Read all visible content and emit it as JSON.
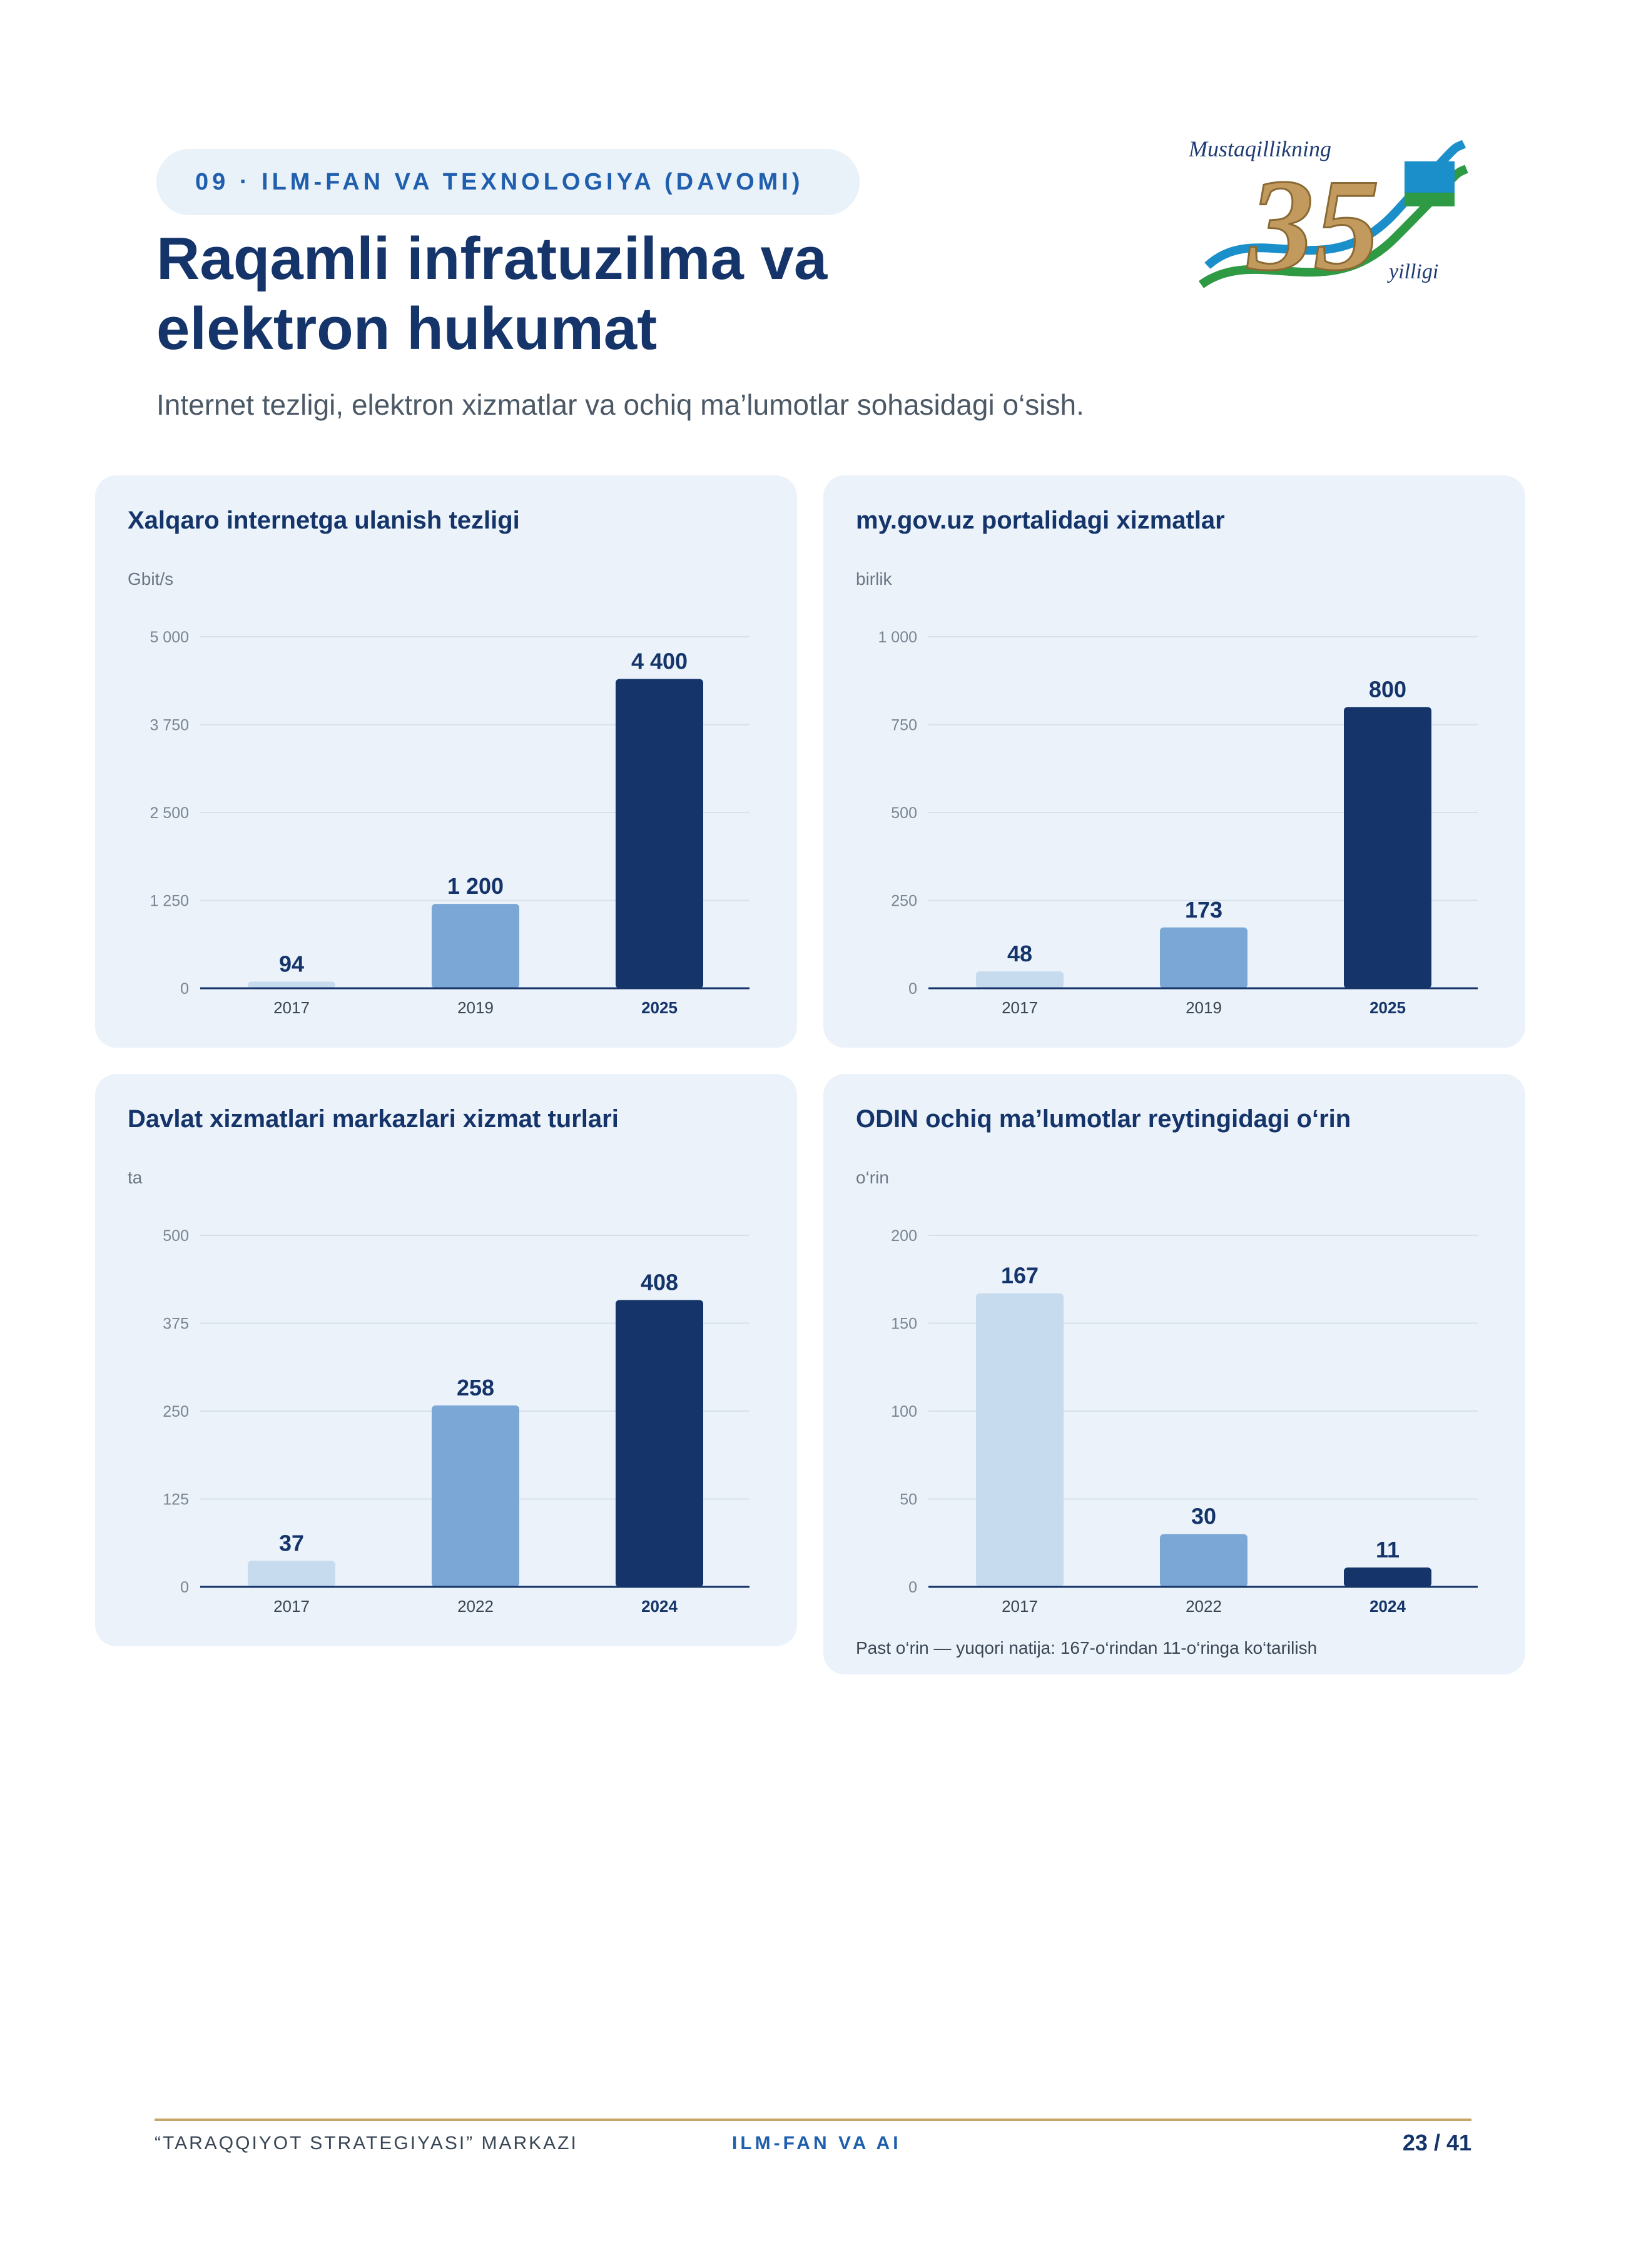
{
  "header": {
    "section_label": "09 · ILM-FAN VA TEXNOLOGIYA (DAVOMI)",
    "title_line1": "Raqamli infratuzilma va",
    "title_line2": "elektron hukumat",
    "subtitle": "Internet tezligi, elektron xizmatlar va ochiq ma’lumotlar sohasidagi o‘sish."
  },
  "logo": {
    "text_top": "Mustaqillikning",
    "number": "35",
    "text_bottom": "yilligi"
  },
  "colors": {
    "light": "#c7dbef",
    "mid": "#7ba7d6",
    "dark": "#14346a",
    "card_bg": "#ebf2f9",
    "gold": "#c6a66a"
  },
  "chart_data": [
    {
      "type": "bar",
      "title": "Xalqaro internetga ulanish tezligi",
      "unit": "Gbit/s",
      "categories": [
        "2017",
        "2019",
        "2025"
      ],
      "values": [
        94,
        1200,
        4400
      ],
      "value_labels": [
        "94",
        "1 200",
        "4 400"
      ],
      "ylim": [
        0,
        5000
      ],
      "yticks": [
        0,
        1250,
        2500,
        3750,
        5000
      ],
      "ytick_labels": [
        "0",
        "1 250",
        "2 500",
        "3 750",
        "5 000"
      ],
      "bold_category": 2
    },
    {
      "type": "bar",
      "title": "my.gov.uz portalidagi xizmatlar",
      "unit": "birlik",
      "categories": [
        "2017",
        "2019",
        "2025"
      ],
      "values": [
        48,
        173,
        800
      ],
      "value_labels": [
        "48",
        "173",
        "800"
      ],
      "ylim": [
        0,
        1000
      ],
      "yticks": [
        0,
        250,
        500,
        750,
        1000
      ],
      "ytick_labels": [
        "0",
        "250",
        "500",
        "750",
        "1 000"
      ],
      "bold_category": 2
    },
    {
      "type": "bar",
      "title": "Davlat xizmatlari markazlari xizmat turlari",
      "unit": "ta",
      "categories": [
        "2017",
        "2022",
        "2024"
      ],
      "values": [
        37,
        258,
        408
      ],
      "value_labels": [
        "37",
        "258",
        "408"
      ],
      "ylim": [
        0,
        500
      ],
      "yticks": [
        0,
        125,
        250,
        375,
        500
      ],
      "ytick_labels": [
        "0",
        "125",
        "250",
        "375",
        "500"
      ],
      "bold_category": 2
    },
    {
      "type": "bar",
      "title": "ODIN ochiq ma’lumotlar reytingidagi o‘rin",
      "unit": "o‘rin",
      "categories": [
        "2017",
        "2022",
        "2024"
      ],
      "values": [
        167,
        30,
        11
      ],
      "value_labels": [
        "167",
        "30",
        "11"
      ],
      "ylim": [
        0,
        200
      ],
      "yticks": [
        0,
        50,
        100,
        150,
        200
      ],
      "ytick_labels": [
        "0",
        "50",
        "100",
        "150",
        "200"
      ],
      "bold_category": 2,
      "note": "Past o‘rin — yuqori natija: 167-o‘rindan 11-o‘ringa ko‘tarilish"
    }
  ],
  "footer": {
    "left": "“TARAQQIYOT STRATEGIYASI” MARKAZI",
    "center": "ILM-FAN VA AI",
    "page": "23 / 41"
  }
}
